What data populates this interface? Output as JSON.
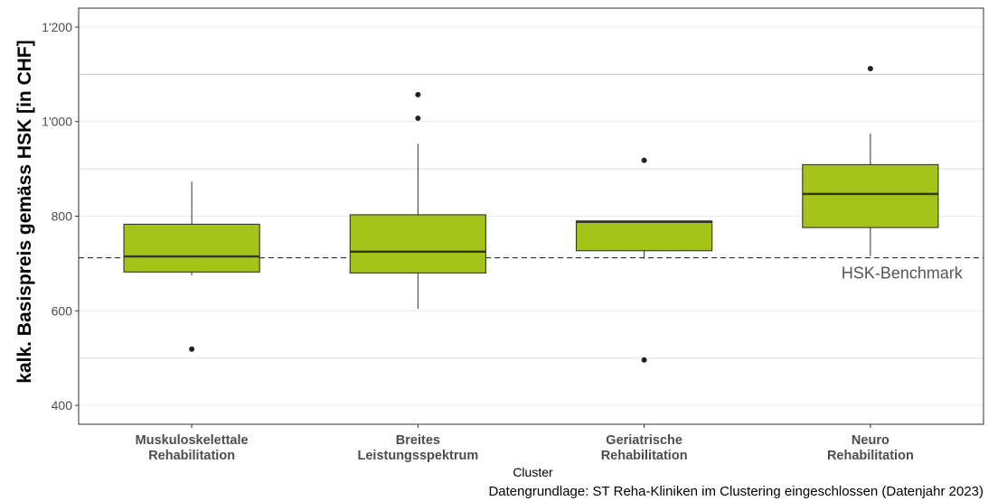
{
  "chart_data": {
    "type": "boxplot",
    "xlabel": "Cluster",
    "ylabel": "kalk. Basispreis gemäss HSK [in CHF]",
    "ylim": [
      360,
      1240
    ],
    "yticks": [
      400,
      600,
      800,
      1000,
      1200
    ],
    "ytick_labels": [
      "400",
      "600",
      "800",
      "1'000",
      "1'200"
    ],
    "grid_major": [
      500,
      900,
      1100
    ],
    "box_color": "#a4c41c",
    "box_edge_color": "#333333",
    "categories": [
      {
        "label": [
          "Muskuloskelettale",
          "Rehabilitation"
        ],
        "whisker_low": 675,
        "q1": 682,
        "median": 715,
        "q3": 783,
        "whisker_high": 873,
        "outliers": [
          519
        ]
      },
      {
        "label": [
          "Breites",
          "Leistungsspektrum"
        ],
        "whisker_low": 604,
        "q1": 680,
        "median": 725,
        "q3": 803,
        "whisker_high": 953,
        "outliers": [
          1007,
          1057
        ]
      },
      {
        "label": [
          "Geriatrische",
          "Rehabilitation"
        ],
        "whisker_low": 710,
        "q1": 727,
        "median": 788,
        "q3": 790,
        "whisker_high": 790,
        "outliers": [
          918,
          496
        ]
      },
      {
        "label": [
          "Neuro",
          "Rehabilitation"
        ],
        "whisker_low": 716,
        "q1": 776,
        "median": 847,
        "q3": 909,
        "whisker_high": 975,
        "outliers": [
          1112
        ]
      }
    ],
    "benchmark": {
      "value": 712,
      "label": "HSK-Benchmark"
    },
    "caption": "Datengrundlage: ST Reha-Kliniken im Clustering eingeschlossen (Datenjahr 2023)"
  }
}
